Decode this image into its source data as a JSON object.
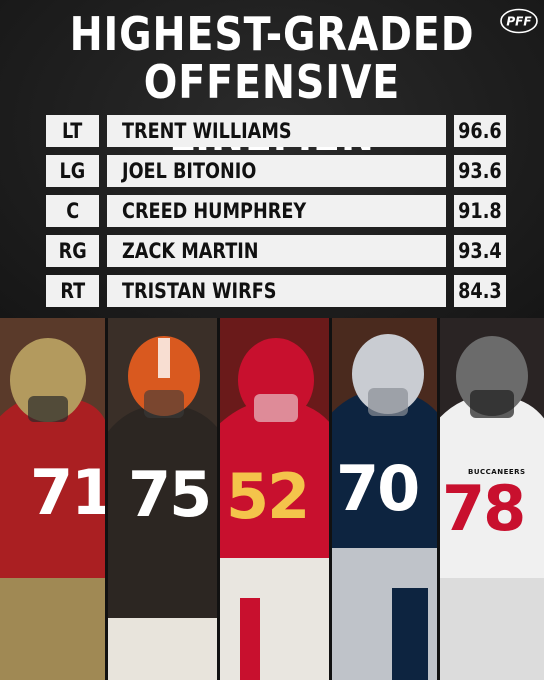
{
  "title": {
    "line1": "HIGHEST-GRADED",
    "line2": "OFFENSIVE LINEMEN"
  },
  "brand": {
    "logo_text": "PFF"
  },
  "rows": [
    {
      "position": "LT",
      "name": "TRENT WILLIAMS",
      "grade": "96.6"
    },
    {
      "position": "LG",
      "name": "JOEL BITONIO",
      "grade": "93.6"
    },
    {
      "position": "C",
      "name": "CREED HUMPHREY",
      "grade": "91.8"
    },
    {
      "position": "RG",
      "name": "ZACK MARTIN",
      "grade": "93.4"
    },
    {
      "position": "RT",
      "name": "TRISTAN WIRFS",
      "grade": "84.3"
    }
  ],
  "photos": [
    {
      "jersey_number": "71",
      "jersey_color": "#aa1f22",
      "helmet_color": "#b39a5e",
      "number_color": "#ffffff"
    },
    {
      "jersey_number": "75",
      "jersey_color": "#2c2622",
      "helmet_color": "#d9591f",
      "number_color": "#ffffff"
    },
    {
      "jersey_number": "52",
      "jersey_color": "#c8102e",
      "helmet_color": "#c8102e",
      "number_color": "#f4c44b"
    },
    {
      "jersey_number": "70",
      "jersey_color": "#0d2440",
      "helmet_color": "#c9ccd2",
      "number_color": "#ffffff"
    },
    {
      "jersey_number": "78",
      "jersey_color": "#f0f0f0",
      "helmet_color": "#6b6b6b",
      "number_color": "#c8102e",
      "team_text": "BUCCANEERS"
    }
  ],
  "colors": {
    "background": "#1c1c1c",
    "bar": "#f1f1f1",
    "text": "#111111"
  }
}
